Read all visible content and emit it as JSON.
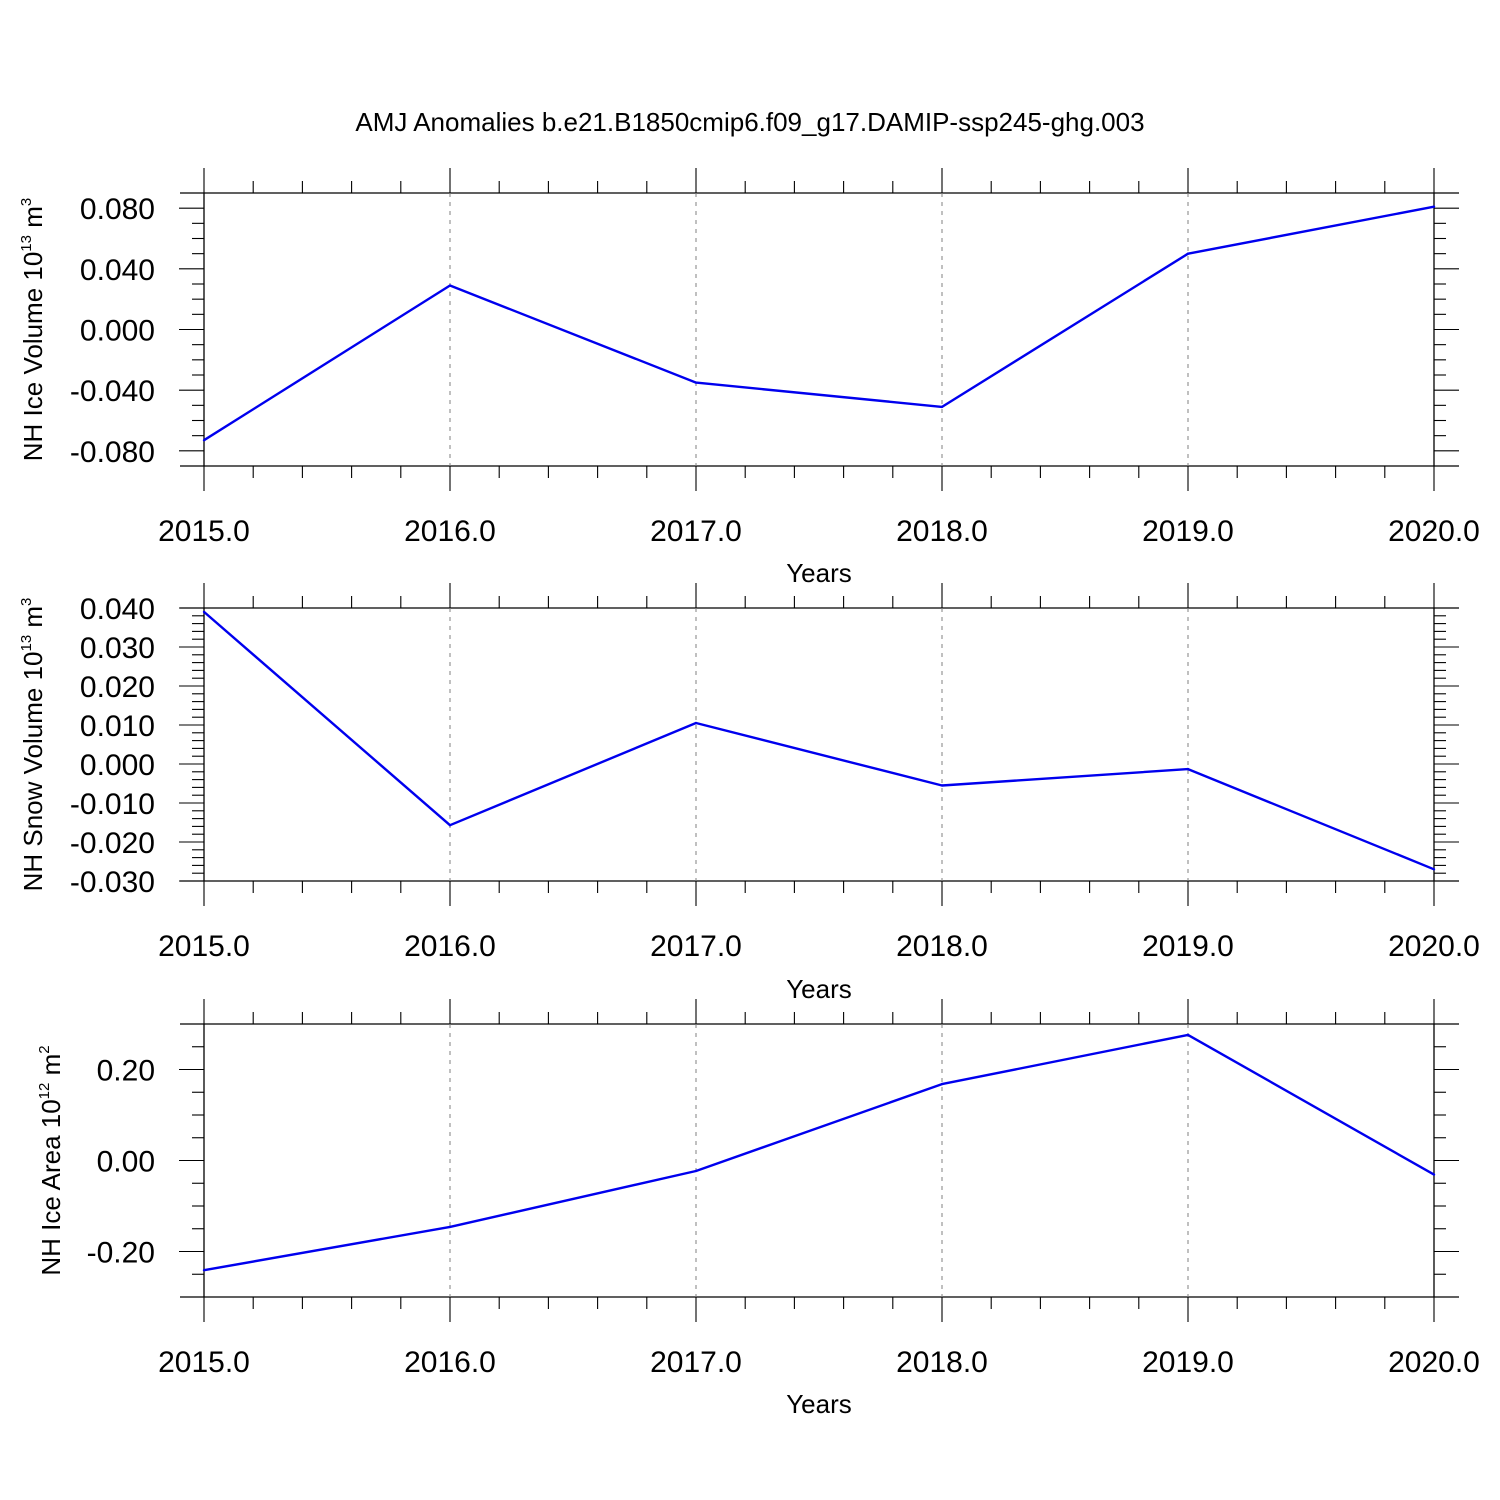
{
  "title": "AMJ Anomalies b.e21.B1850cmip6.f09_g17.DAMIP-ssp245-ghg.003",
  "chart_data": [
    {
      "type": "line",
      "ylabel": {
        "prefix": "NH Ice Volume 10",
        "sup1": "13",
        "mid": " m",
        "sup2": "3"
      },
      "xlabel": "Years",
      "xlim": [
        2015,
        2020
      ],
      "ylim": [
        -0.09,
        0.09
      ],
      "x_ticks": [
        2015,
        2016,
        2017,
        2018,
        2019,
        2020
      ],
      "x_tick_labels": [
        "2015.0",
        "2016.0",
        "2017.0",
        "2018.0",
        "2019.0",
        "2020.0"
      ],
      "y_ticks": [
        -0.08,
        -0.04,
        0.0,
        0.04,
        0.08
      ],
      "y_tick_labels": [
        "-0.080",
        "-0.040",
        "0.000",
        "0.040",
        "0.080"
      ],
      "y_minor_step": 0.01,
      "x_minor_step": 0.2,
      "grid": "vertical-dashed",
      "line_color": "#0000ee",
      "x": [
        2015,
        2016,
        2017,
        2018,
        2019,
        2020
      ],
      "values": [
        -0.073,
        0.029,
        -0.035,
        -0.051,
        0.05,
        0.081
      ]
    },
    {
      "type": "line",
      "ylabel": {
        "prefix": "NH Snow Volume 10",
        "sup1": "13",
        "mid": " m",
        "sup2": "3"
      },
      "xlabel": "Years",
      "xlim": [
        2015,
        2020
      ],
      "ylim": [
        -0.03,
        0.04
      ],
      "x_ticks": [
        2015,
        2016,
        2017,
        2018,
        2019,
        2020
      ],
      "x_tick_labels": [
        "2015.0",
        "2016.0",
        "2017.0",
        "2018.0",
        "2019.0",
        "2020.0"
      ],
      "y_ticks": [
        -0.03,
        -0.02,
        -0.01,
        0.0,
        0.01,
        0.02,
        0.03,
        0.04
      ],
      "y_tick_labels": [
        "-0.030",
        "-0.020",
        "-0.010",
        "0.000",
        "0.010",
        "0.020",
        "0.030",
        "0.040"
      ],
      "y_minor_step": 0.002,
      "x_minor_step": 0.2,
      "grid": "vertical-dashed",
      "line_color": "#0000ee",
      "x": [
        2015,
        2016,
        2017,
        2018,
        2019,
        2020
      ],
      "values": [
        0.039,
        -0.0157,
        0.0105,
        -0.0055,
        -0.0013,
        -0.027
      ]
    },
    {
      "type": "line",
      "ylabel": {
        "prefix": "NH Ice Area 10",
        "sup1": "12",
        "mid": " m",
        "sup2": "2"
      },
      "xlabel": "Years",
      "xlim": [
        2015,
        2020
      ],
      "ylim": [
        -0.3,
        0.3
      ],
      "x_ticks": [
        2015,
        2016,
        2017,
        2018,
        2019,
        2020
      ],
      "x_tick_labels": [
        "2015.0",
        "2016.0",
        "2017.0",
        "2018.0",
        "2019.0",
        "2020.0"
      ],
      "y_ticks": [
        -0.2,
        0.0,
        0.2
      ],
      "y_tick_labels": [
        "-0.20",
        "0.00",
        "0.20"
      ],
      "y_minor_step": 0.05,
      "x_minor_step": 0.2,
      "grid": "vertical-dashed",
      "line_color": "#0000ee",
      "x": [
        2015,
        2016,
        2017,
        2018,
        2019,
        2020
      ],
      "values": [
        -0.241,
        -0.146,
        -0.023,
        0.168,
        0.276,
        -0.031
      ]
    }
  ]
}
